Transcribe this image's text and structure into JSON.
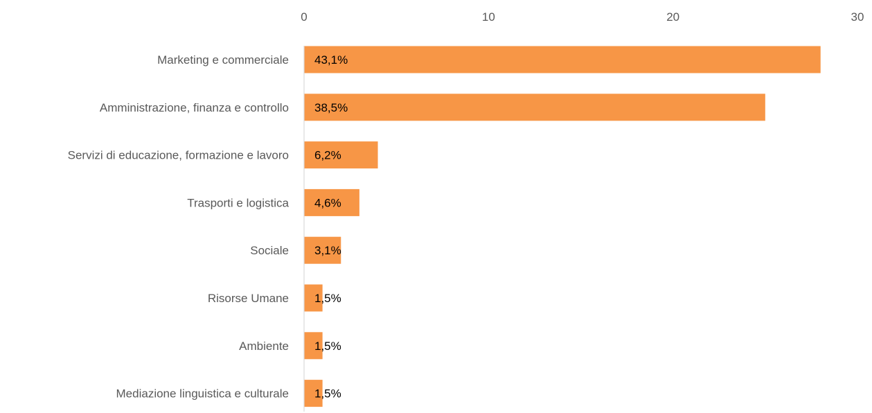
{
  "chart_data": {
    "type": "bar",
    "orientation": "horizontal",
    "title": "",
    "xlabel": "",
    "ylabel": "",
    "xlim": [
      0,
      30
    ],
    "x_ticks": [
      0,
      10,
      20,
      30
    ],
    "x_axis_position": "top",
    "grid": false,
    "legend": "none",
    "bar_color": "#F79646",
    "axis_color": "#D9D9D9",
    "categories": [
      "Marketing e commerciale",
      "Amministrazione, finanza e controllo",
      "Servizi di educazione, formazione e lavoro",
      "Trasporti e logistica",
      "Sociale",
      "Risorse Umane",
      "Ambiente",
      "Mediazione linguistica e culturale"
    ],
    "values": [
      28,
      25,
      4,
      3,
      2,
      1,
      1,
      1
    ],
    "data_labels": [
      "43,1%",
      "38,5%",
      "6,2%",
      "4,6%",
      "3,1%",
      "1,5%",
      "1,5%",
      "1,5%"
    ]
  }
}
